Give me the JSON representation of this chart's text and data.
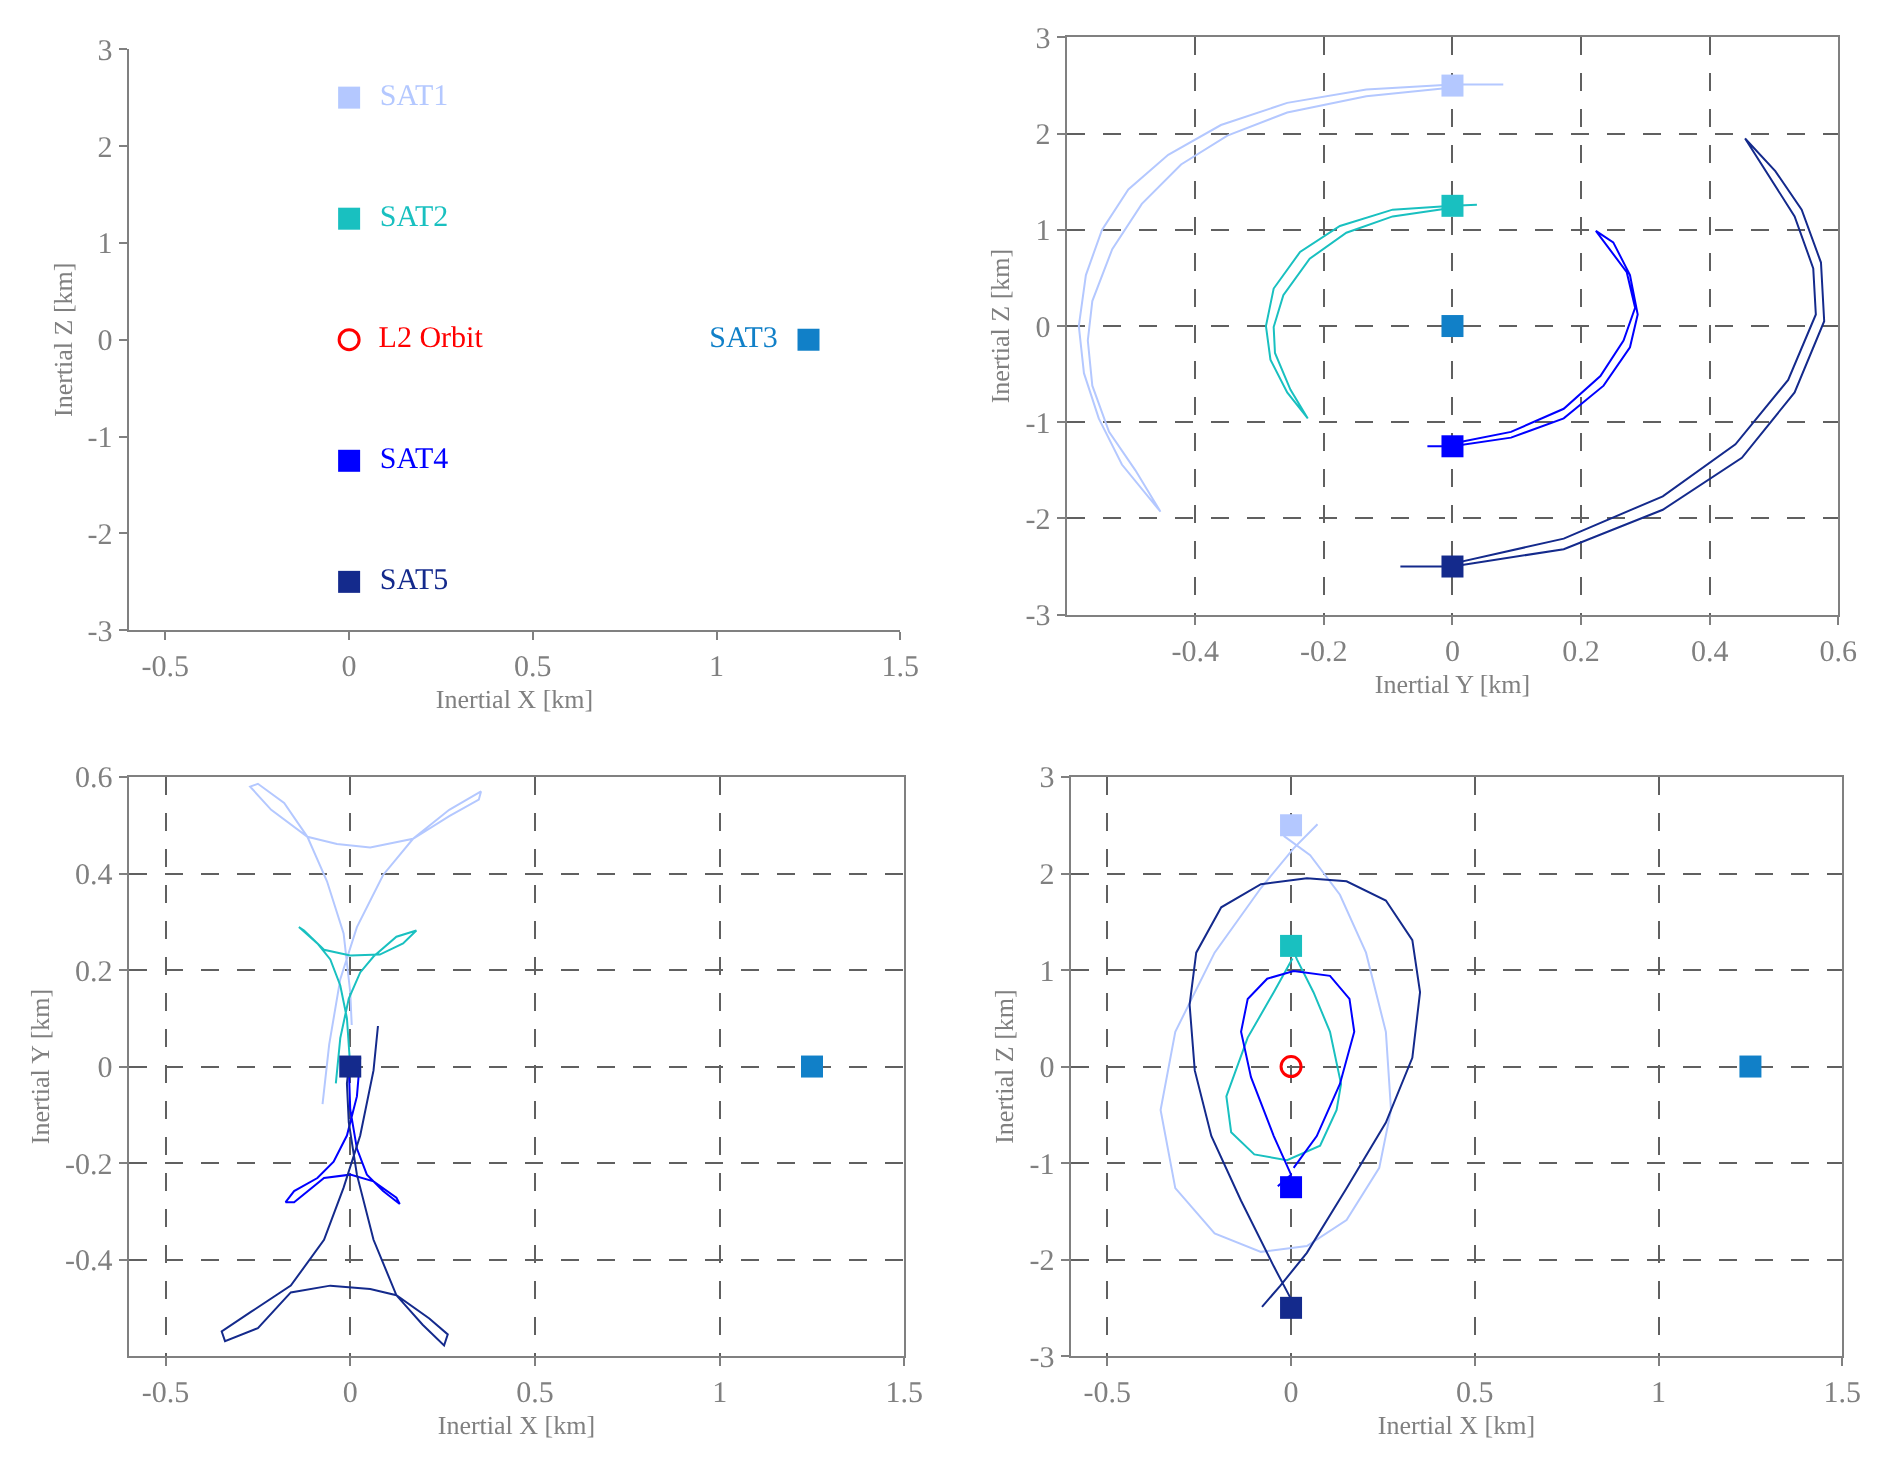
{
  "chart_data": [
    {
      "type": "scatter",
      "xlabel": "Inertial X [km]",
      "ylabel": "Inertial Z [km]",
      "xlim": [
        -0.6,
        1.5
      ],
      "ylim": [
        -3,
        3
      ],
      "xticks": [
        -0.5,
        0,
        0.5,
        1,
        1.5
      ],
      "yticks": [
        -3,
        -2,
        -1,
        0,
        1,
        2,
        3
      ],
      "grid": false,
      "series": [
        {
          "type": "scatter",
          "name": "SAT1",
          "color": "#b4c8ff",
          "marker": "square",
          "x": [
            0
          ],
          "values": [
            2.5
          ]
        },
        {
          "type": "scatter",
          "name": "SAT2",
          "color": "#19c0c0",
          "marker": "square",
          "x": [
            0
          ],
          "values": [
            1.25
          ]
        },
        {
          "type": "scatter",
          "name": "L2 Orbit",
          "color": "#ff0000",
          "marker": "circle",
          "x": [
            0
          ],
          "values": [
            0
          ]
        },
        {
          "type": "scatter",
          "name": "SAT3",
          "color": "#1180c8",
          "marker": "square",
          "x": [
            1.25
          ],
          "values": [
            0
          ]
        },
        {
          "type": "scatter",
          "name": "SAT4",
          "color": "#0000ff",
          "marker": "square",
          "x": [
            0
          ],
          "values": [
            -1.25
          ]
        },
        {
          "type": "scatter",
          "name": "SAT5",
          "color": "#142a8c",
          "marker": "square",
          "x": [
            0
          ],
          "values": [
            -2.5
          ]
        }
      ]
    },
    {
      "type": "scatter",
      "xlabel": "Inertial Y [km]",
      "ylabel": "Inertial Z [km]",
      "xlim": [
        -0.6,
        0.6
      ],
      "ylim": [
        -3,
        3
      ],
      "xticks": [
        -0.4,
        -0.2,
        0,
        0.2,
        0.4,
        0.6
      ],
      "yticks": [
        -3,
        -2,
        -1,
        0,
        1,
        2,
        3
      ],
      "grid": true,
      "series": [
        {
          "type": "line",
          "color": "#b4c8ff",
          "x": [
            0.079,
            0,
            -0.134,
            -0.257,
            -0.36,
            -0.442,
            -0.504,
            -0.545,
            -0.57,
            -0.581,
            -0.573,
            -0.55,
            -0.514,
            -0.454,
            -0.493,
            -0.534,
            -0.56,
            -0.567,
            -0.56,
            -0.529,
            -0.483,
            -0.422,
            -0.35,
            -0.257,
            -0.134,
            0
          ],
          "values": [
            2.51,
            2.51,
            2.46,
            2.32,
            2.09,
            1.78,
            1.42,
            1.0,
            0.53,
            0,
            -0.49,
            -0.96,
            -1.44,
            -1.93,
            -1.5,
            -1.1,
            -0.62,
            -0.15,
            0.26,
            0.8,
            1.27,
            1.68,
            1.98,
            2.22,
            2.39,
            2.48
          ]
        },
        {
          "type": "line",
          "color": "#19c0c0",
          "x": [
            0.038,
            0,
            -0.093,
            -0.175,
            -0.237,
            -0.278,
            -0.29,
            -0.283,
            -0.257,
            -0.225,
            -0.252,
            -0.276,
            -0.278,
            -0.263,
            -0.222,
            -0.165,
            -0.093,
            0
          ],
          "values": [
            1.26,
            1.25,
            1.21,
            1.04,
            0.77,
            0.39,
            0,
            -0.35,
            -0.69,
            -0.96,
            -0.66,
            -0.28,
            -0.01,
            0.32,
            0.7,
            0.97,
            1.14,
            1.23
          ]
        },
        {
          "type": "line",
          "color": "#0000ff",
          "x": [
            -0.039,
            0,
            0.091,
            0.173,
            0.235,
            0.276,
            0.288,
            0.276,
            0.25,
            0.223,
            0.271,
            0.284,
            0.266,
            0.23,
            0.173,
            0.091,
            0
          ],
          "values": [
            -1.25,
            -1.25,
            -1.16,
            -0.96,
            -0.62,
            -0.22,
            0.12,
            0.53,
            0.87,
            0.99,
            0.56,
            0.19,
            -0.15,
            -0.52,
            -0.86,
            -1.1,
            -1.22
          ]
        },
        {
          "type": "line",
          "color": "#142a8c",
          "x": [
            -0.081,
            0,
            0.173,
            0.327,
            0.45,
            0.532,
            0.578,
            0.573,
            0.543,
            0.502,
            0.455,
            0.532,
            0.561,
            0.565,
            0.522,
            0.44,
            0.327,
            0.173,
            0
          ],
          "values": [
            -2.5,
            -2.5,
            -2.32,
            -1.91,
            -1.37,
            -0.69,
            0.05,
            0.66,
            1.21,
            1.61,
            1.95,
            1.14,
            0.6,
            0.12,
            -0.56,
            -1.23,
            -1.77,
            -2.21,
            -2.47
          ]
        },
        {
          "type": "scatter",
          "color": "#b4c8ff",
          "marker": "square",
          "x": [
            0
          ],
          "values": [
            2.5
          ]
        },
        {
          "type": "scatter",
          "color": "#19c0c0",
          "marker": "square",
          "x": [
            0
          ],
          "values": [
            1.25
          ]
        },
        {
          "type": "scatter",
          "color": "#1180c8",
          "marker": "square",
          "x": [
            0
          ],
          "values": [
            0
          ]
        },
        {
          "type": "scatter",
          "color": "#0000ff",
          "marker": "square",
          "x": [
            0
          ],
          "values": [
            -1.25
          ]
        },
        {
          "type": "scatter",
          "color": "#142a8c",
          "marker": "square",
          "x": [
            0
          ],
          "values": [
            -2.5
          ]
        }
      ]
    },
    {
      "type": "scatter",
      "xlabel": "Inertial X [km]",
      "ylabel": "Inertial Y [km]",
      "xlim": [
        -0.6,
        1.5
      ],
      "ylim": [
        -0.6,
        0.6
      ],
      "xticks": [
        -0.5,
        0,
        0.5,
        1,
        1.5
      ],
      "yticks": [
        -0.4,
        -0.2,
        0,
        0.2,
        0.4,
        0.6
      ],
      "grid": true,
      "series": [
        {
          "type": "line",
          "color": "#b4c8ff",
          "x": [
            -0.075,
            -0.057,
            -0.027,
            0.018,
            0.089,
            0.17,
            0.268,
            0.354,
            0.348,
            0.268,
            0.17,
            0.054,
            -0.036,
            -0.116,
            -0.214,
            -0.271,
            -0.25,
            -0.179,
            -0.116,
            -0.063,
            -0.018,
            0,
            0.004
          ],
          "values": [
            -0.078,
            0.046,
            0.181,
            0.289,
            0.397,
            0.472,
            0.532,
            0.57,
            0.553,
            0.519,
            0.472,
            0.454,
            0.461,
            0.476,
            0.532,
            0.58,
            0.586,
            0.546,
            0.476,
            0.384,
            0.276,
            0.154,
            0.086
          ]
        },
        {
          "type": "line",
          "color": "#19c0c0",
          "x": [
            -0.039,
            -0.027,
            -0.004,
            0.027,
            0.063,
            0.125,
            0.179,
            0.143,
            0.08,
            0,
            -0.071,
            -0.125,
            -0.139,
            -0.089,
            -0.054,
            -0.027,
            -0.009,
            0
          ],
          "values": [
            -0.035,
            0.059,
            0.141,
            0.195,
            0.228,
            0.269,
            0.282,
            0.255,
            0.232,
            0.23,
            0.242,
            0.282,
            0.289,
            0.255,
            0.222,
            0.168,
            0.1,
            0
          ]
        },
        {
          "type": "line",
          "color": "#0000ff",
          "x": [
            0.027,
            0.018,
            -0.009,
            -0.045,
            -0.089,
            -0.152,
            -0.175,
            -0.152,
            -0.071,
            0,
            0.063,
            0.125,
            0.134,
            0.089,
            0.045,
            0.018,
            0,
            -0.004
          ],
          "values": [
            0.019,
            -0.062,
            -0.143,
            -0.197,
            -0.231,
            -0.258,
            -0.281,
            -0.281,
            -0.231,
            -0.224,
            -0.238,
            -0.272,
            -0.285,
            -0.258,
            -0.224,
            -0.17,
            -0.089,
            0
          ]
        },
        {
          "type": "line",
          "color": "#142a8c",
          "x": [
            0.075,
            0.063,
            0.027,
            -0.018,
            -0.071,
            -0.161,
            -0.268,
            -0.348,
            -0.339,
            -0.25,
            -0.161,
            -0.054,
            0.054,
            0.125,
            0.214,
            0.264,
            0.254,
            0.196,
            0.125,
            0.063,
            0.018,
            -0.004,
            -0.009,
            -0.004
          ],
          "values": [
            0.084,
            -0.008,
            -0.143,
            -0.251,
            -0.359,
            -0.454,
            -0.508,
            -0.549,
            -0.569,
            -0.542,
            -0.468,
            -0.454,
            -0.461,
            -0.474,
            -0.522,
            -0.555,
            -0.578,
            -0.535,
            -0.474,
            -0.359,
            -0.224,
            -0.116,
            -0.035,
            0
          ]
        },
        {
          "type": "scatter",
          "color": "#1180c8",
          "marker": "square",
          "x": [
            1.25
          ],
          "values": [
            0
          ]
        },
        {
          "type": "scatter",
          "color": "#142a8c",
          "marker": "square",
          "x": [
            0
          ],
          "values": [
            0
          ]
        }
      ]
    },
    {
      "type": "scatter",
      "xlabel": "Inertial X [km]",
      "ylabel": "Inertial Z [km]",
      "xlim": [
        -0.6,
        1.5
      ],
      "ylim": [
        -3,
        3
      ],
      "xticks": [
        -0.5,
        0,
        0.5,
        1,
        1.5
      ],
      "yticks": [
        -3,
        -2,
        -1,
        0,
        1,
        2,
        3
      ],
      "grid": true,
      "series": [
        {
          "type": "line",
          "color": "#b4c8ff",
          "x": [
            0.072,
            0.007,
            -0.082,
            -0.208,
            -0.315,
            -0.355,
            -0.315,
            -0.208,
            -0.082,
            0.043,
            0.151,
            0.24,
            0.272,
            0.258,
            0.204,
            0.133,
            0.052,
            -0.02
          ],
          "values": [
            2.51,
            2.26,
            1.85,
            1.18,
            0.36,
            -0.45,
            -1.26,
            -1.73,
            -1.92,
            -1.86,
            -1.59,
            -1.05,
            -0.45,
            0.36,
            1.18,
            1.78,
            2.19,
            2.39
          ]
        },
        {
          "type": "line",
          "color": "#19c0c0",
          "x": [
            0.004,
            -0.047,
            -0.118,
            -0.176,
            -0.163,
            -0.1,
            -0.011,
            0.079,
            0.124,
            0.136,
            0.106,
            0.061,
            0.016,
            0
          ],
          "values": [
            1.12,
            0.77,
            0.3,
            -0.31,
            -0.68,
            -0.91,
            -0.97,
            -0.82,
            -0.45,
            -0.18,
            0.36,
            0.77,
            1.11,
            1.26
          ]
        },
        {
          "type": "line",
          "color": "#0000ff",
          "x": [
            -0.036,
            0,
            -0.047,
            -0.109,
            -0.136,
            -0.118,
            -0.065,
            0.007,
            0.106,
            0.159,
            0.172,
            0.133,
            0.07,
            0.007
          ],
          "values": [
            -1.24,
            -1.12,
            -0.72,
            -0.11,
            0.36,
            0.7,
            0.91,
            0.99,
            0.94,
            0.7,
            0.36,
            -0.18,
            -0.72,
            -1.05
          ]
        },
        {
          "type": "line",
          "color": "#142a8c",
          "x": [
            -0.079,
            -0.029,
            0.043,
            0.151,
            0.258,
            0.33,
            0.351,
            0.33,
            0.258,
            0.151,
            0.043,
            -0.082,
            -0.19,
            -0.258,
            -0.276,
            -0.262,
            -0.217,
            -0.136,
            -0.047,
            0
          ],
          "values": [
            -2.49,
            -2.27,
            -1.93,
            -1.26,
            -0.58,
            0.09,
            0.77,
            1.31,
            1.72,
            1.92,
            1.95,
            1.89,
            1.65,
            1.18,
            0.64,
            -0.04,
            -0.72,
            -1.39,
            -2.07,
            -2.41
          ]
        },
        {
          "type": "scatter",
          "color": "#b4c8ff",
          "marker": "square",
          "x": [
            0
          ],
          "values": [
            2.5
          ]
        },
        {
          "type": "scatter",
          "color": "#19c0c0",
          "marker": "square",
          "x": [
            0
          ],
          "values": [
            1.25
          ]
        },
        {
          "type": "scatter",
          "color": "#ff0000",
          "marker": "circle",
          "x": [
            0
          ],
          "values": [
            0
          ]
        },
        {
          "type": "scatter",
          "color": "#1180c8",
          "marker": "square",
          "x": [
            1.25
          ],
          "values": [
            0
          ]
        },
        {
          "type": "scatter",
          "color": "#0000ff",
          "marker": "square",
          "x": [
            0
          ],
          "values": [
            -1.25
          ]
        },
        {
          "type": "scatter",
          "color": "#142a8c",
          "marker": "square",
          "x": [
            0
          ],
          "values": [
            -2.5
          ]
        }
      ]
    }
  ]
}
